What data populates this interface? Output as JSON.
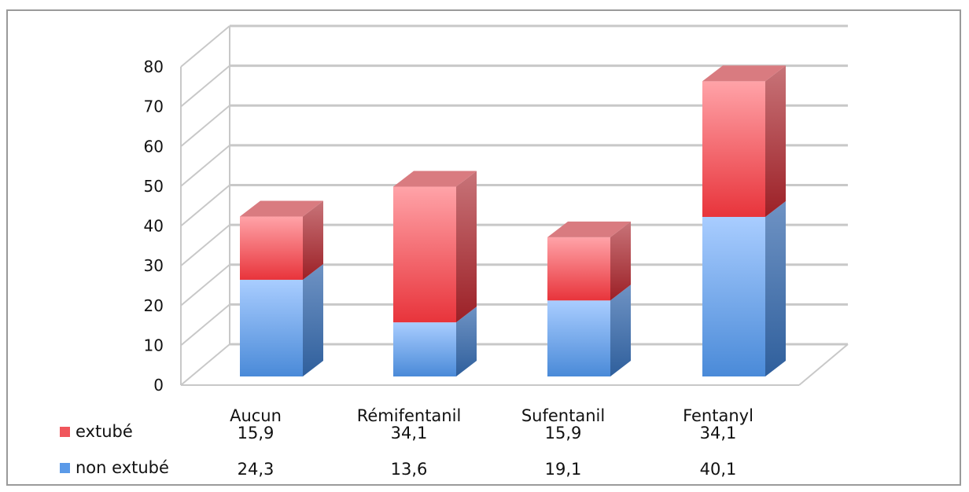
{
  "chart_data": {
    "type": "bar",
    "stacked": true,
    "three_d": true,
    "categories": [
      "Aucun",
      "Rémifentanil",
      "Sufentanil",
      "Fentanyl"
    ],
    "series": [
      {
        "name": "non extubé",
        "values": [
          24.3,
          13.6,
          19.1,
          40.1
        ],
        "value_labels": [
          "24,3",
          "13,6",
          "19,1",
          "40,1"
        ],
        "color": "#5b9ae8"
      },
      {
        "name": "extubé",
        "values": [
          15.9,
          34.1,
          15.9,
          34.1
        ],
        "value_labels": [
          "15,9",
          "34,1",
          "15,9",
          "34,1"
        ],
        "color": "#f0565c"
      }
    ],
    "ylim": [
      0,
      80
    ],
    "yticks": [
      "0",
      "10",
      "20",
      "30",
      "40",
      "50",
      "60",
      "70",
      "80"
    ],
    "grid": true,
    "legend": "data-table-left"
  }
}
